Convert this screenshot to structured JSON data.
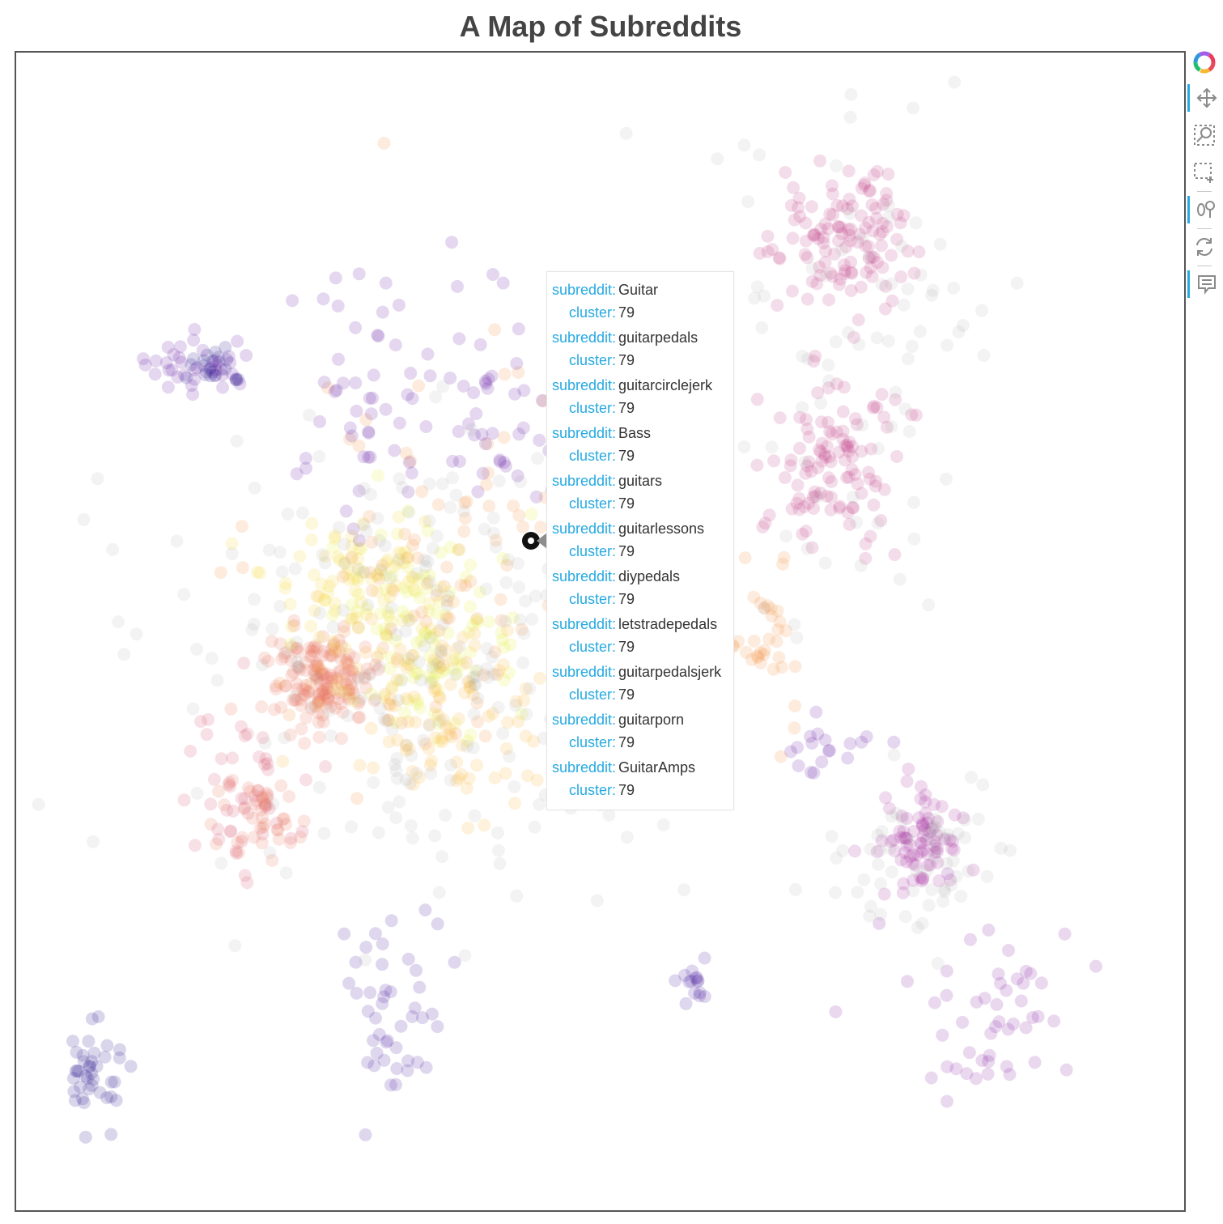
{
  "title": "A Map of Subreddits",
  "toolbar": {
    "tools": [
      {
        "name": "bokeh-logo-icon",
        "active": false
      },
      {
        "name": "pan-icon",
        "active": true
      },
      {
        "name": "wheel-zoom-icon",
        "active": false
      },
      {
        "name": "box-zoom-icon",
        "active": false
      },
      {
        "name": "box-select-icon",
        "active": true
      },
      {
        "name": "reset-icon",
        "active": false
      },
      {
        "name": "hover-icon",
        "active": true
      }
    ]
  },
  "tooltip": {
    "entries": [
      {
        "subreddit_label": "subreddit:",
        "subreddit": "Guitar",
        "cluster_label": "cluster:",
        "cluster": "79"
      },
      {
        "subreddit_label": "subreddit:",
        "subreddit": "guitarpedals",
        "cluster_label": "cluster:",
        "cluster": "79"
      },
      {
        "subreddit_label": "subreddit:",
        "subreddit": "guitarcirclejerk",
        "cluster_label": "cluster:",
        "cluster": "79"
      },
      {
        "subreddit_label": "subreddit:",
        "subreddit": "Bass",
        "cluster_label": "cluster:",
        "cluster": "79"
      },
      {
        "subreddit_label": "subreddit:",
        "subreddit": "guitars",
        "cluster_label": "cluster:",
        "cluster": "79"
      },
      {
        "subreddit_label": "subreddit:",
        "subreddit": "guitarlessons",
        "cluster_label": "cluster:",
        "cluster": "79"
      },
      {
        "subreddit_label": "subreddit:",
        "subreddit": "diypedals",
        "cluster_label": "cluster:",
        "cluster": "79"
      },
      {
        "subreddit_label": "subreddit:",
        "subreddit": "letstradepedals",
        "cluster_label": "cluster:",
        "cluster": "79"
      },
      {
        "subreddit_label": "subreddit:",
        "subreddit": "guitarpedalsjerk",
        "cluster_label": "cluster:",
        "cluster": "79"
      },
      {
        "subreddit_label": "subreddit:",
        "subreddit": "guitarporn",
        "cluster_label": "cluster:",
        "cluster": "79"
      },
      {
        "subreddit_label": "subreddit:",
        "subreddit": "GuitarAmps",
        "cluster_label": "cluster:",
        "cluster": "79"
      }
    ]
  },
  "colors": {
    "tooltip_key": "#26aae1",
    "noise_gray": "#9a9a9a",
    "palette": [
      "#2d1a8f",
      "#4b1fa0",
      "#6a21a8",
      "#8b25a8",
      "#a8329e",
      "#c4438a",
      "#d85b73",
      "#e8775e",
      "#f3974a",
      "#f8b83c",
      "#f4d63a",
      "#e4f03a"
    ]
  },
  "chart_data": {
    "type": "scatter",
    "title": "A Map of Subreddits",
    "xlabel": "",
    "ylabel": "",
    "grid": false,
    "clusters": [
      {
        "color": "#6a21a8",
        "cx": 0.16,
        "cy": 0.27,
        "sx": 0.025,
        "sy": 0.012,
        "n": 40
      },
      {
        "color": "#2d1a8f",
        "cx": 0.17,
        "cy": 0.27,
        "sx": 0.012,
        "sy": 0.008,
        "n": 20
      },
      {
        "color": "#e8775e",
        "cx": 0.26,
        "cy": 0.54,
        "sx": 0.022,
        "sy": 0.022,
        "n": 160
      },
      {
        "color": "#e4f03a",
        "cx": 0.35,
        "cy": 0.5,
        "sx": 0.04,
        "sy": 0.04,
        "n": 120
      },
      {
        "color": "#f4d63a",
        "cx": 0.29,
        "cy": 0.45,
        "sx": 0.04,
        "sy": 0.03,
        "n": 80
      },
      {
        "color": "#f8b83c",
        "cx": 0.37,
        "cy": 0.57,
        "sx": 0.05,
        "sy": 0.04,
        "n": 100
      },
      {
        "color": "#f3974a",
        "cx": 0.36,
        "cy": 0.44,
        "sx": 0.08,
        "sy": 0.09,
        "n": 110
      },
      {
        "color": "#d85b73",
        "cx": 0.2,
        "cy": 0.64,
        "sx": 0.03,
        "sy": 0.04,
        "n": 50
      },
      {
        "color": "#e8775e",
        "cx": 0.21,
        "cy": 0.66,
        "sx": 0.015,
        "sy": 0.02,
        "n": 40
      },
      {
        "color": "#c4438a",
        "cx": 0.7,
        "cy": 0.16,
        "sx": 0.03,
        "sy": 0.03,
        "n": 120
      },
      {
        "color": "#c4438a",
        "cx": 0.7,
        "cy": 0.35,
        "sx": 0.03,
        "sy": 0.04,
        "n": 110
      },
      {
        "color": "#a8329e",
        "cx": 0.77,
        "cy": 0.68,
        "sx": 0.018,
        "sy": 0.02,
        "n": 80
      },
      {
        "color": "#8b25a8",
        "cx": 0.85,
        "cy": 0.82,
        "sx": 0.04,
        "sy": 0.04,
        "n": 50
      },
      {
        "color": "#6a21a8",
        "cx": 0.3,
        "cy": 0.3,
        "sx": 0.03,
        "sy": 0.05,
        "n": 50
      },
      {
        "color": "#6a21a8",
        "cx": 0.41,
        "cy": 0.31,
        "sx": 0.03,
        "sy": 0.05,
        "n": 45
      },
      {
        "color": "#4b1fa0",
        "cx": 0.32,
        "cy": 0.82,
        "sx": 0.02,
        "sy": 0.05,
        "n": 45
      },
      {
        "color": "#2d1a8f",
        "cx": 0.065,
        "cy": 0.88,
        "sx": 0.014,
        "sy": 0.02,
        "n": 40
      },
      {
        "color": "#4b1fa0",
        "cx": 0.58,
        "cy": 0.8,
        "sx": 0.007,
        "sy": 0.008,
        "n": 15
      },
      {
        "color": "#f3974a",
        "cx": 0.64,
        "cy": 0.49,
        "sx": 0.015,
        "sy": 0.04,
        "n": 35
      },
      {
        "color": "#6a21a8",
        "cx": 0.69,
        "cy": 0.6,
        "sx": 0.02,
        "sy": 0.015,
        "n": 18
      },
      {
        "color": "#9a9a9a",
        "cx": 0.35,
        "cy": 0.52,
        "sx": 0.11,
        "sy": 0.1,
        "n": 260
      },
      {
        "color": "#9a9a9a",
        "cx": 0.72,
        "cy": 0.25,
        "sx": 0.06,
        "sy": 0.12,
        "n": 80
      },
      {
        "color": "#9a9a9a",
        "cx": 0.77,
        "cy": 0.7,
        "sx": 0.04,
        "sy": 0.04,
        "n": 60
      }
    ],
    "highlighted_point": {
      "subreddit": "Guitar",
      "cluster": 79
    }
  }
}
